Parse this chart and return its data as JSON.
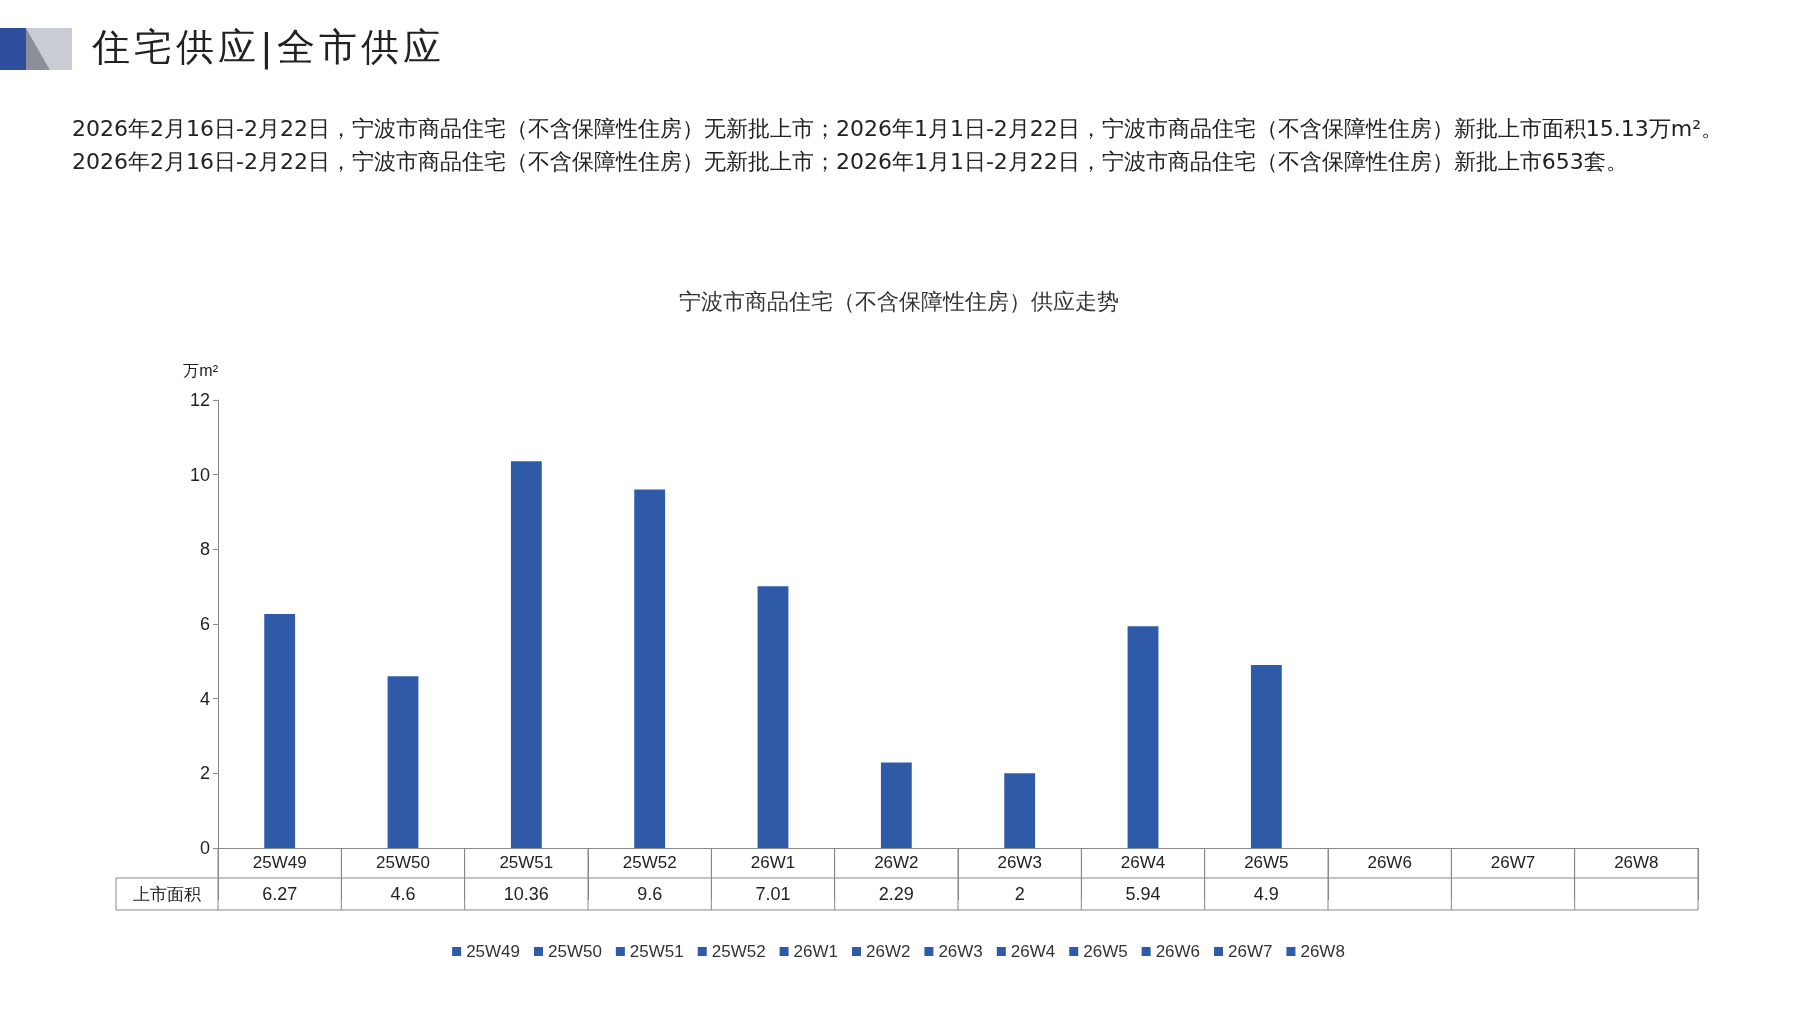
{
  "chart_data": {
    "type": "bar",
    "title": "宁波市商品住宅（不含保障性住房）供应走势",
    "subtitle": "2026年2月16日-2月22日，宁波市商品住宅（不含保障性住房）无新批上市；2026年1月1日-2月22日，宁波市商品住宅（不含保障性住房）新批上市面积15.13万m²。2026年2月16日-2月22日，宁波市商品住宅（不含保障性住房）无新批上市；2026年1月1日-2月22日，宁波市商品住宅（不含保障性住房）新批上市653套。",
    "annotations": [
      "住宅供应|全市供应",
      "上市面积"
    ],
    "ylabel": "万m²",
    "ylim": [
      0,
      12
    ],
    "yticks": [
      0,
      2,
      4,
      6,
      8,
      10,
      12
    ],
    "categories": [
      "25W49",
      "25W50",
      "25W51",
      "25W52",
      "26W1",
      "26W2",
      "26W3",
      "26W4",
      "26W5",
      "26W6",
      "26W7",
      "26W8"
    ],
    "stacked": true,
    "data_labels": true,
    "legend": "bottom",
    "series": [
      {
        "name": "25W49",
        "color": "#2e5aa8",
        "values": [
          6.27,
          null,
          null,
          null,
          null,
          null,
          null,
          null,
          null,
          null,
          null,
          null
        ]
      },
      {
        "name": "25W50",
        "color": "#2e5aa8",
        "values": [
          null,
          4.6,
          null,
          null,
          null,
          null,
          null,
          null,
          null,
          null,
          null,
          null
        ]
      },
      {
        "name": "25W51",
        "color": "#2e5aa8",
        "values": [
          null,
          null,
          10.36,
          null,
          null,
          null,
          null,
          null,
          null,
          null,
          null,
          null
        ]
      },
      {
        "name": "25W52",
        "color": "#2e5aa8",
        "values": [
          null,
          null,
          null,
          9.6,
          null,
          null,
          null,
          null,
          null,
          null,
          null,
          null
        ]
      },
      {
        "name": "26W1",
        "color": "#2e5aa8",
        "values": [
          null,
          null,
          null,
          null,
          7.01,
          null,
          null,
          null,
          null,
          null,
          null,
          null
        ]
      },
      {
        "name": "26W2",
        "color": "#2e5aa8",
        "values": [
          null,
          null,
          null,
          null,
          null,
          2.29,
          null,
          null,
          null,
          null,
          null,
          null
        ]
      },
      {
        "name": "26W3",
        "color": "#2e5aa8",
        "values": [
          null,
          null,
          null,
          null,
          null,
          null,
          2,
          null,
          null,
          null,
          null,
          null
        ]
      },
      {
        "name": "26W4",
        "color": "#2e5aa8",
        "values": [
          null,
          null,
          null,
          null,
          null,
          null,
          null,
          5.94,
          null,
          null,
          null,
          null
        ]
      },
      {
        "name": "26W5",
        "color": "#2e5aa8",
        "values": [
          null,
          null,
          null,
          null,
          null,
          null,
          null,
          null,
          4.9,
          null,
          null,
          null
        ]
      },
      {
        "name": "26W6",
        "color": "#2e5aa8",
        "values": [
          null,
          null,
          null,
          null,
          null,
          null,
          null,
          null,
          null,
          null,
          null,
          null
        ]
      },
      {
        "name": "26W7",
        "color": "#2e5aa8",
        "values": [
          null,
          null,
          null,
          null,
          null,
          null,
          null,
          null,
          null,
          null,
          null,
          null
        ]
      },
      {
        "name": "26W8",
        "color": "#2e5aa8",
        "values": [
          null,
          null,
          null,
          null,
          null,
          null,
          null,
          null,
          null,
          null,
          null,
          null
        ]
      }
    ]
  }
}
